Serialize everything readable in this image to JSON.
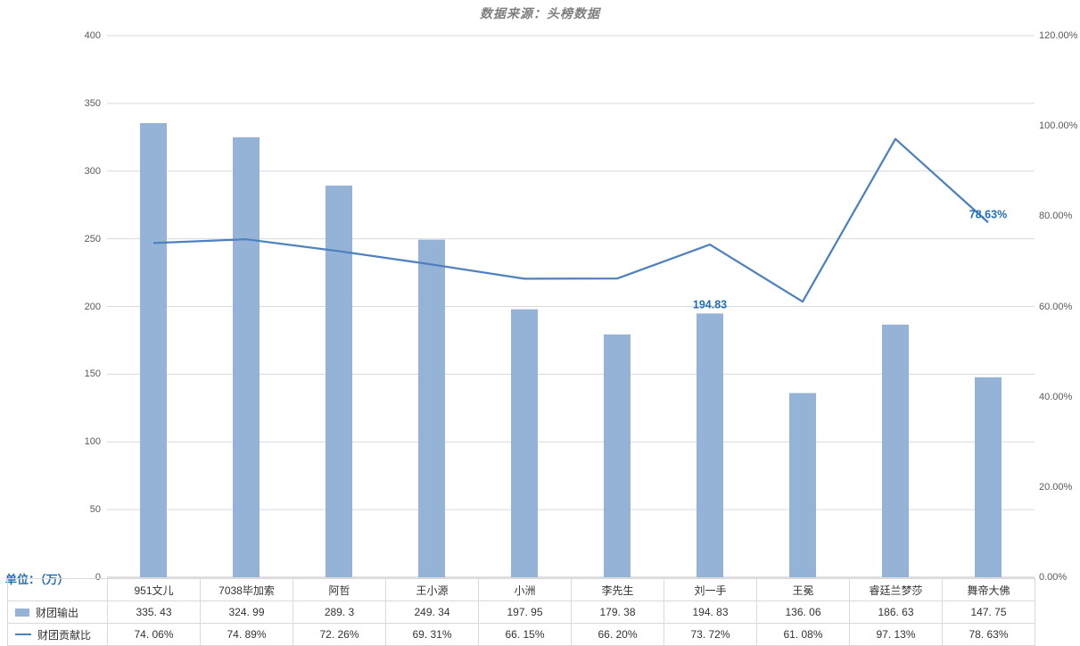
{
  "title": "数据来源：头榜数据",
  "unit_label": "单位：（万）",
  "colors": {
    "bar_fill": "#95B3D7",
    "line_stroke": "#4E81BD",
    "data_label": "#1F6FB5",
    "gridline": "#D9D9D9",
    "axis_line": "#BFBFBF",
    "title_text": "#808080"
  },
  "chart_data": {
    "type": "combo-bar-line",
    "categories": [
      "951文儿",
      "7038毕加索",
      "阿哲",
      "王小源",
      "小洲",
      "李先生",
      "刘一手",
      "王冕",
      "睿廷兰梦莎",
      "舞帝大佛"
    ],
    "series": [
      {
        "name": "财团输出",
        "type": "bar",
        "axis": "left",
        "color": "#95B3D7",
        "values": [
          335.43,
          324.99,
          289.3,
          249.34,
          197.95,
          179.38,
          194.83,
          136.06,
          186.63,
          147.75
        ],
        "display": [
          "335. 43",
          "324. 99",
          "289. 3",
          "249. 34",
          "197. 95",
          "179. 38",
          "194. 83",
          "136. 06",
          "186. 63",
          "147. 75"
        ]
      },
      {
        "name": "财团贡献比",
        "type": "line",
        "axis": "right",
        "color": "#4E81BD",
        "values": [
          74.06,
          74.89,
          72.26,
          69.31,
          66.15,
          66.2,
          73.72,
          61.08,
          97.13,
          78.63
        ],
        "display": [
          "74. 06%",
          "74. 89%",
          "72. 26%",
          "69. 31%",
          "66. 15%",
          "66. 20%",
          "73. 72%",
          "61. 08%",
          "97. 13%",
          "78. 63%"
        ]
      }
    ],
    "left_axis": {
      "min": 0,
      "max": 400,
      "step": 50,
      "ticks": [
        "0",
        "50",
        "100",
        "150",
        "200",
        "250",
        "300",
        "350",
        "400"
      ]
    },
    "right_axis": {
      "min": 0,
      "max": 120,
      "step": 20,
      "ticks": [
        "0.00%",
        "20.00%",
        "40.00%",
        "60.00%",
        "80.00%",
        "100.00%",
        "120.00%"
      ]
    },
    "data_labels": [
      {
        "series": 0,
        "index": 6,
        "text": "194.83"
      },
      {
        "series": 1,
        "index": 9,
        "text": "78.63%"
      }
    ],
    "grid": true,
    "legend_position": "data-table-left"
  }
}
